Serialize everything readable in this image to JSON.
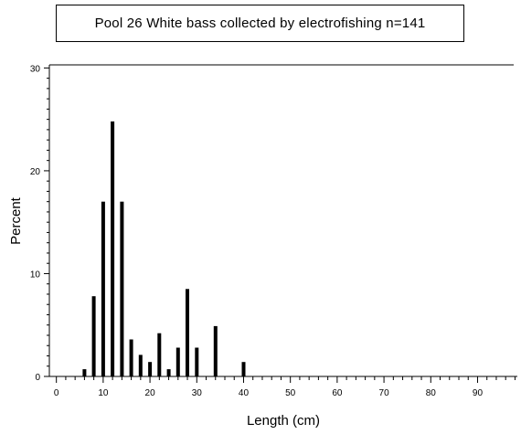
{
  "chart_data": {
    "type": "bar",
    "title": "Pool 26 White bass collected by electrofishing n=141",
    "xlabel": "Length (cm)",
    "ylabel": "Percent",
    "xlim": [
      -1.5,
      98.5
    ],
    "ylim": [
      0,
      30.3
    ],
    "x_ticks": [
      0,
      10,
      20,
      30,
      40,
      50,
      60,
      70,
      80,
      90
    ],
    "x_tick_labels": [
      "0",
      "10",
      "20",
      "30",
      "40",
      "50",
      "60",
      "70",
      "80",
      "90"
    ],
    "y_ticks": [
      0,
      10,
      20,
      30
    ],
    "y_tick_labels": [
      "0",
      "10",
      "20",
      "30"
    ],
    "x_minor_step": 2,
    "y_minor_step": 1,
    "grid": false,
    "bar_color": "#000000",
    "x": [
      6,
      8,
      10,
      12,
      14,
      16,
      18,
      20,
      22,
      24,
      26,
      28,
      30,
      34,
      40
    ],
    "values": [
      0.7,
      7.8,
      17.0,
      24.8,
      17.0,
      3.6,
      2.1,
      1.4,
      4.2,
      0.7,
      2.8,
      8.5,
      2.8,
      4.9,
      1.4
    ]
  }
}
